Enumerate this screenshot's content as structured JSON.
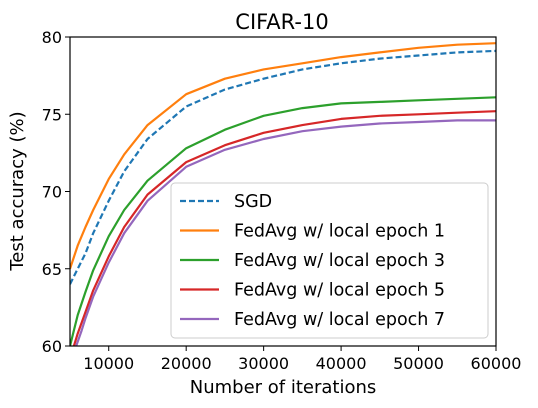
{
  "chart_data": {
    "type": "line",
    "title": "CIFAR-10",
    "xlabel": "Number of iterations",
    "ylabel": "Test accuracy (%)",
    "xlim": [
      5000,
      60000
    ],
    "ylim": [
      60,
      80
    ],
    "xticks": [
      10000,
      20000,
      30000,
      40000,
      50000,
      60000
    ],
    "yticks": [
      60,
      65,
      70,
      75,
      80
    ],
    "grid": false,
    "legend_position": "lower-right",
    "series": [
      {
        "name": "SGD",
        "color": "#1f77b4",
        "style": "dashed",
        "x": [
          5000,
          6000,
          7000,
          8000,
          10000,
          12000,
          15000,
          20000,
          25000,
          30000,
          35000,
          40000,
          45000,
          50000,
          55000,
          60000
        ],
        "y": [
          64.0,
          65.0,
          66.0,
          67.3,
          69.4,
          71.3,
          73.4,
          75.5,
          76.6,
          77.3,
          77.9,
          78.3,
          78.6,
          78.8,
          79.0,
          79.1
        ]
      },
      {
        "name": "FedAvg w/ local epoch 1",
        "color": "#ff7f0e",
        "style": "solid",
        "x": [
          5000,
          6000,
          7000,
          8000,
          10000,
          12000,
          15000,
          20000,
          25000,
          30000,
          35000,
          40000,
          45000,
          50000,
          55000,
          60000
        ],
        "y": [
          65.0,
          66.5,
          67.7,
          68.8,
          70.8,
          72.4,
          74.3,
          76.3,
          77.3,
          77.9,
          78.3,
          78.7,
          79.0,
          79.3,
          79.5,
          79.6
        ]
      },
      {
        "name": "FedAvg w/ local epoch 3",
        "color": "#2ca02c",
        "style": "solid",
        "x": [
          5000,
          6000,
          7000,
          8000,
          10000,
          12000,
          15000,
          20000,
          25000,
          30000,
          35000,
          40000,
          45000,
          50000,
          55000,
          60000
        ],
        "y": [
          60.0,
          62.0,
          63.5,
          64.9,
          67.1,
          68.8,
          70.7,
          72.8,
          74.0,
          74.9,
          75.4,
          75.7,
          75.8,
          75.9,
          76.0,
          76.1
        ]
      },
      {
        "name": "FedAvg w/ local epoch 5",
        "color": "#d62728",
        "style": "solid",
        "x": [
          5500,
          6000,
          7000,
          8000,
          10000,
          12000,
          15000,
          20000,
          25000,
          30000,
          35000,
          40000,
          45000,
          50000,
          55000,
          60000
        ],
        "y": [
          60.0,
          60.8,
          62.2,
          63.6,
          65.8,
          67.7,
          69.8,
          71.9,
          73.0,
          73.8,
          74.3,
          74.7,
          74.9,
          75.0,
          75.1,
          75.2
        ]
      },
      {
        "name": "FedAvg w/ local epoch 7",
        "color": "#9467bd",
        "style": "solid",
        "x": [
          5800,
          6500,
          7000,
          8000,
          10000,
          12000,
          15000,
          20000,
          25000,
          30000,
          35000,
          40000,
          45000,
          50000,
          55000,
          60000
        ],
        "y": [
          60.0,
          61.0,
          61.8,
          63.2,
          65.4,
          67.3,
          69.4,
          71.6,
          72.7,
          73.4,
          73.9,
          74.2,
          74.4,
          74.5,
          74.6,
          74.6
        ]
      }
    ]
  }
}
